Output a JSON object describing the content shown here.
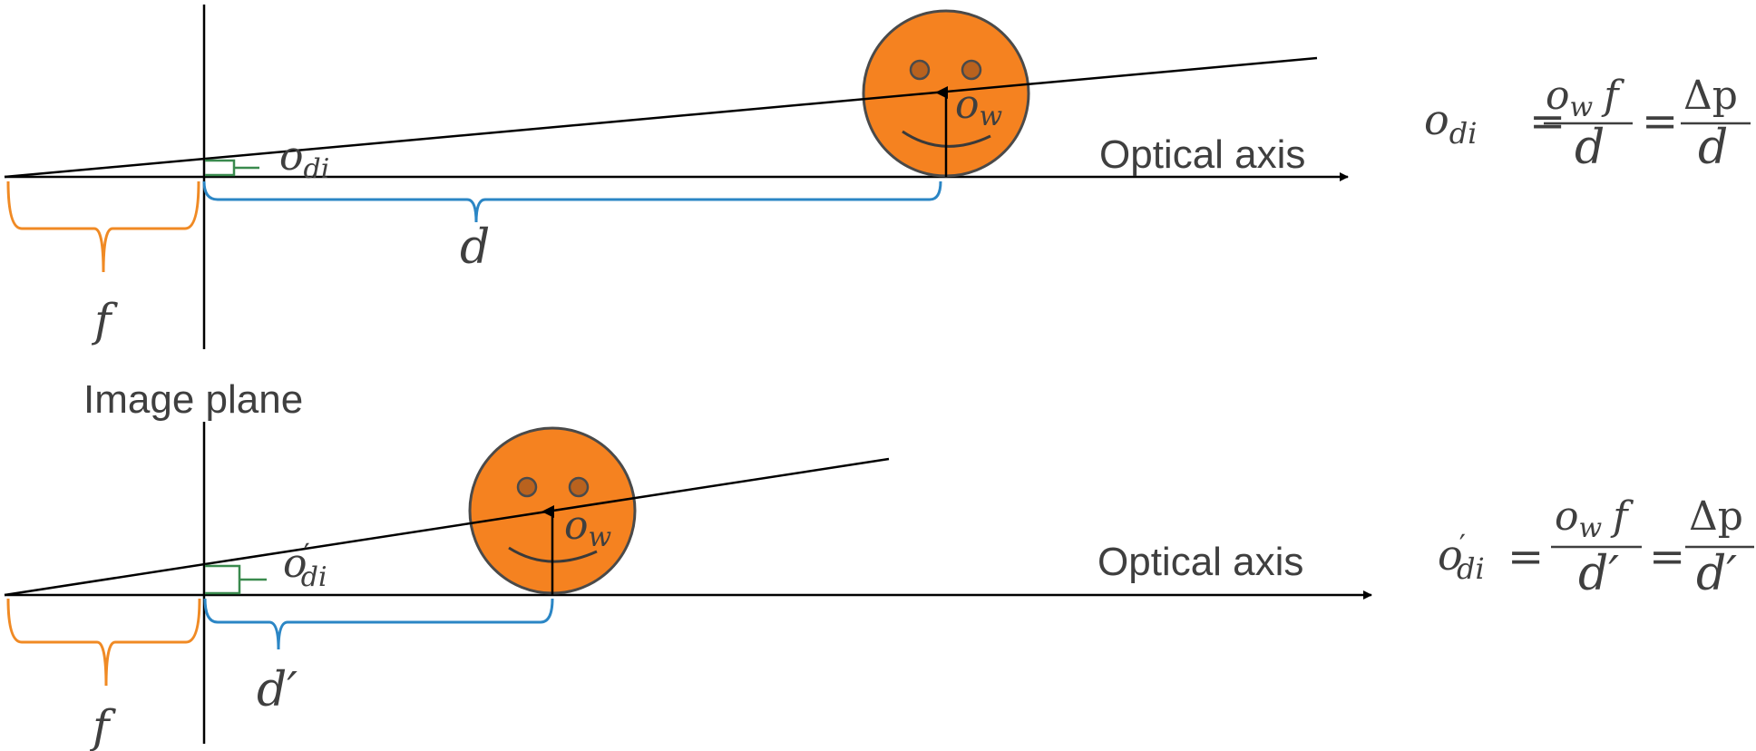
{
  "labels": {
    "image_plane": "Image plane",
    "optical_axis_top": "Optical axis",
    "optical_axis_bottom": "Optical axis"
  },
  "symbols": {
    "f": "f",
    "d": "d",
    "d_prime": "d′",
    "o": "o",
    "di": "di",
    "w": "w",
    "prime": "′",
    "delta_p": "Δp",
    "equals": "="
  },
  "colors": {
    "face_fill": "#f58220",
    "face_stroke": "#4a4a4a",
    "eye_fill": "#b9621e",
    "focal_brace": "#f08a24",
    "distance_brace": "#2b86c5",
    "image_brace": "#3a8a4e",
    "line": "#000000"
  }
}
